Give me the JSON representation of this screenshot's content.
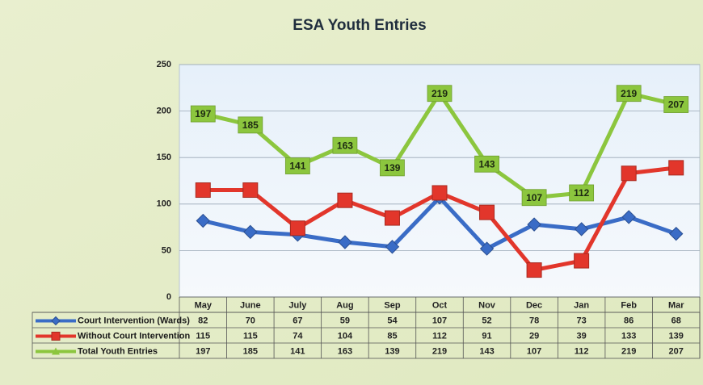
{
  "chart_data": {
    "type": "line",
    "title": "ESA Youth Entries",
    "categories": [
      "May",
      "June",
      "July",
      "Aug",
      "Sep",
      "Oct",
      "Nov",
      "Dec",
      "Jan",
      "Feb",
      "Mar"
    ],
    "series": [
      {
        "name": "Court Intervention (Wards)",
        "color": "#3a6cc6",
        "marker": "diamond",
        "values": [
          82,
          70,
          67,
          59,
          54,
          107,
          52,
          78,
          73,
          86,
          68
        ]
      },
      {
        "name": "Without Court Intervention",
        "color": "#e2362b",
        "marker": "square",
        "values": [
          115,
          115,
          74,
          104,
          85,
          112,
          91,
          29,
          39,
          133,
          139
        ]
      },
      {
        "name": "Total Youth Entries",
        "color": "#8cc63e",
        "marker": "triangle",
        "data_labels": true,
        "values": [
          197,
          185,
          141,
          163,
          139,
          219,
          143,
          107,
          112,
          219,
          207
        ]
      }
    ],
    "ylim": [
      0,
      250
    ],
    "yticks": [
      0,
      50,
      100,
      150,
      200,
      250
    ],
    "grid": true,
    "data_table": true
  }
}
